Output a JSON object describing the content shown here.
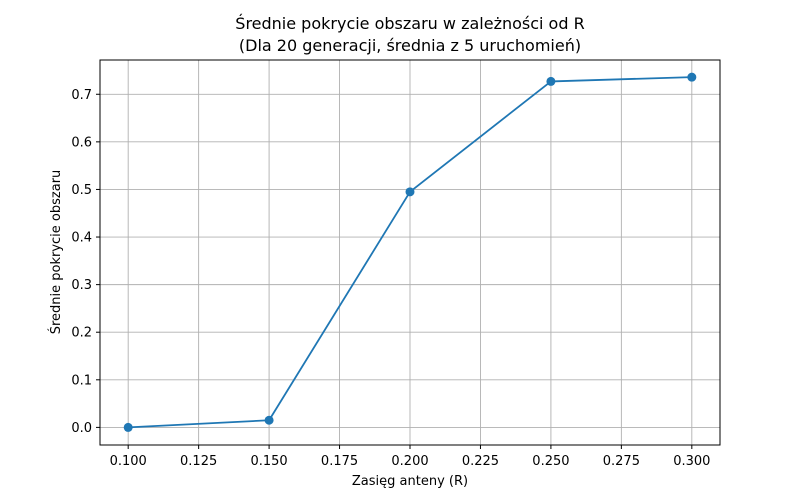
{
  "chart_data": {
    "type": "line",
    "title": "Średnie pokrycie obszaru w zależności od R",
    "subtitle": "(Dla 20 generacji, średnia z 5 uruchomień)",
    "xlabel": "Zasięg anteny (R)",
    "ylabel": "Średnie pokrycie obszaru",
    "x": [
      0.1,
      0.15,
      0.2,
      0.25,
      0.3
    ],
    "series": [
      {
        "values": [
          0.0,
          0.015,
          0.495,
          0.727,
          0.736
        ],
        "color": "#1f77b4",
        "marker": "circle"
      }
    ],
    "xlim": [
      0.09,
      0.31
    ],
    "ylim": [
      -0.037,
      0.772
    ],
    "xticks": [
      0.1,
      0.125,
      0.15,
      0.175,
      0.2,
      0.225,
      0.25,
      0.275,
      0.3
    ],
    "xtick_labels": [
      "0.100",
      "0.125",
      "0.150",
      "0.175",
      "0.200",
      "0.225",
      "0.250",
      "0.275",
      "0.300"
    ],
    "yticks": [
      0.0,
      0.1,
      0.2,
      0.3,
      0.4,
      0.5,
      0.6,
      0.7
    ],
    "ytick_labels": [
      "0.0",
      "0.1",
      "0.2",
      "0.3",
      "0.4",
      "0.5",
      "0.6",
      "0.7"
    ],
    "grid": true
  }
}
